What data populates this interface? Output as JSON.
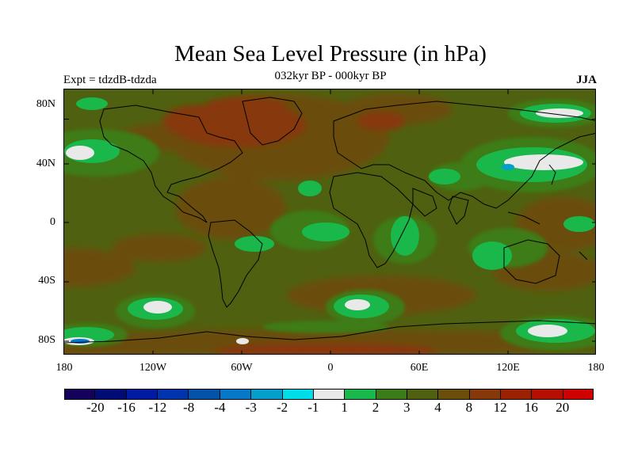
{
  "title": "Mean Sea Level Pressure (in hPa)",
  "subtitle_center": "032kyr BP - 000kyr BP",
  "subtitle_left": "Expt = tdzdB-tdzda",
  "subtitle_right": "JJA",
  "map": {
    "lat_labels": [
      "80N",
      "40N",
      "0",
      "40S",
      "80S"
    ],
    "lon_labels": [
      "180",
      "120W",
      "60W",
      "0",
      "60E",
      "120E",
      "180"
    ],
    "field_variable": "mean sea level pressure difference (hPa)"
  },
  "colorbar": {
    "colors": [
      "#15005b",
      "#000b75",
      "#001aa4",
      "#0034ae",
      "#0253a9",
      "#0579c7",
      "#049fcb",
      "#00dde8",
      "#e9e9e9",
      "#1ab74b",
      "#3c7c18",
      "#4f6110",
      "#6a4e0a",
      "#873808",
      "#9c2103",
      "#b50e03",
      "#cf0000"
    ],
    "labels": [
      "-20",
      "-16",
      "-12",
      "-8",
      "-4",
      "-3",
      "-2",
      "-1",
      "1",
      "2",
      "3",
      "4",
      "8",
      "12",
      "16",
      "20"
    ]
  }
}
